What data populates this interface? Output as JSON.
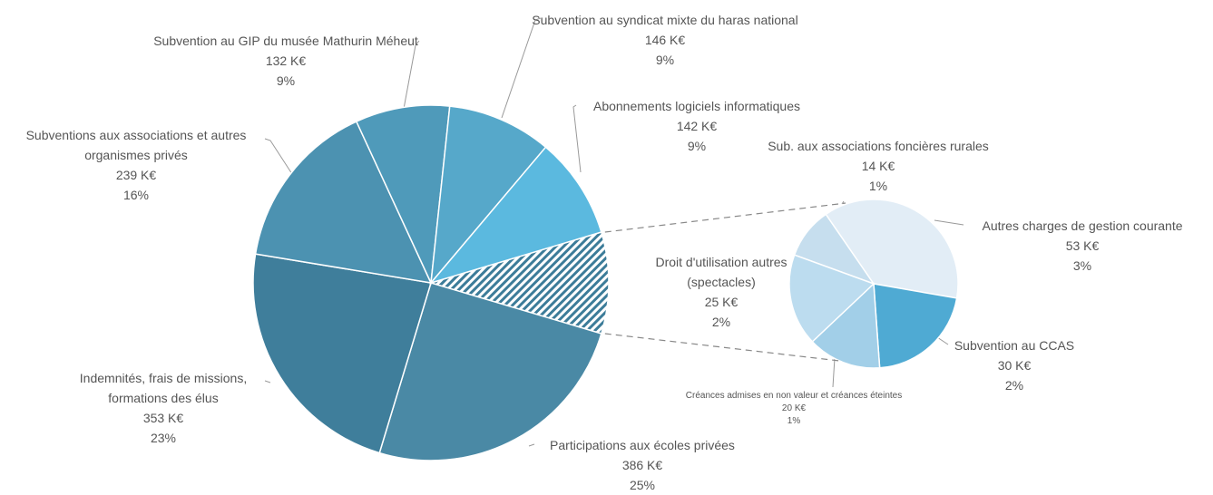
{
  "chart_data": {
    "type": "pie",
    "categories": [
      "Participations aux écoles privées",
      "Indemnités, frais de missions, formations des élus",
      "Subventions aux associations et autres organismes privés",
      "Subvention au GIP du musée Mathurin Méheut",
      "Subvention au syndicat mixte du haras national",
      "Abonnements logiciels informatiques"
    ],
    "values": [
      386,
      353,
      239,
      132,
      146,
      142
    ],
    "value_labels": [
      "386 K€",
      "353 K€",
      "239 K€",
      "132 K€",
      "146 K€",
      "142 K€"
    ],
    "percent_labels": [
      "25%",
      "23%",
      "16%",
      "9%",
      "9%",
      "9%"
    ],
    "colors": [
      "#4a89a5",
      "#3f7e9b",
      "#4c92b1",
      "#4f9aba",
      "#56a8ca",
      "#5bb9df"
    ],
    "sub_pie": {
      "categories": [
        "Sub. aux associations foncières rurales",
        "Autres charges de gestion courante",
        "Subvention au CCAS",
        "Créances admises en non valeur et créances éteintes",
        "Droit d'utilisation autres (spectacles)"
      ],
      "values": [
        14,
        53,
        30,
        20,
        25
      ],
      "value_labels": [
        "14 K€",
        "53 K€",
        "30 K€",
        "20 K€",
        "25 K€"
      ],
      "percent_labels": [
        "1%",
        "3%",
        "2%",
        "1%",
        "2%"
      ],
      "colors": [
        "#c6deee",
        "#e2edf6",
        "#4faad3",
        "#a2cfe8",
        "#bcdcef"
      ]
    }
  }
}
